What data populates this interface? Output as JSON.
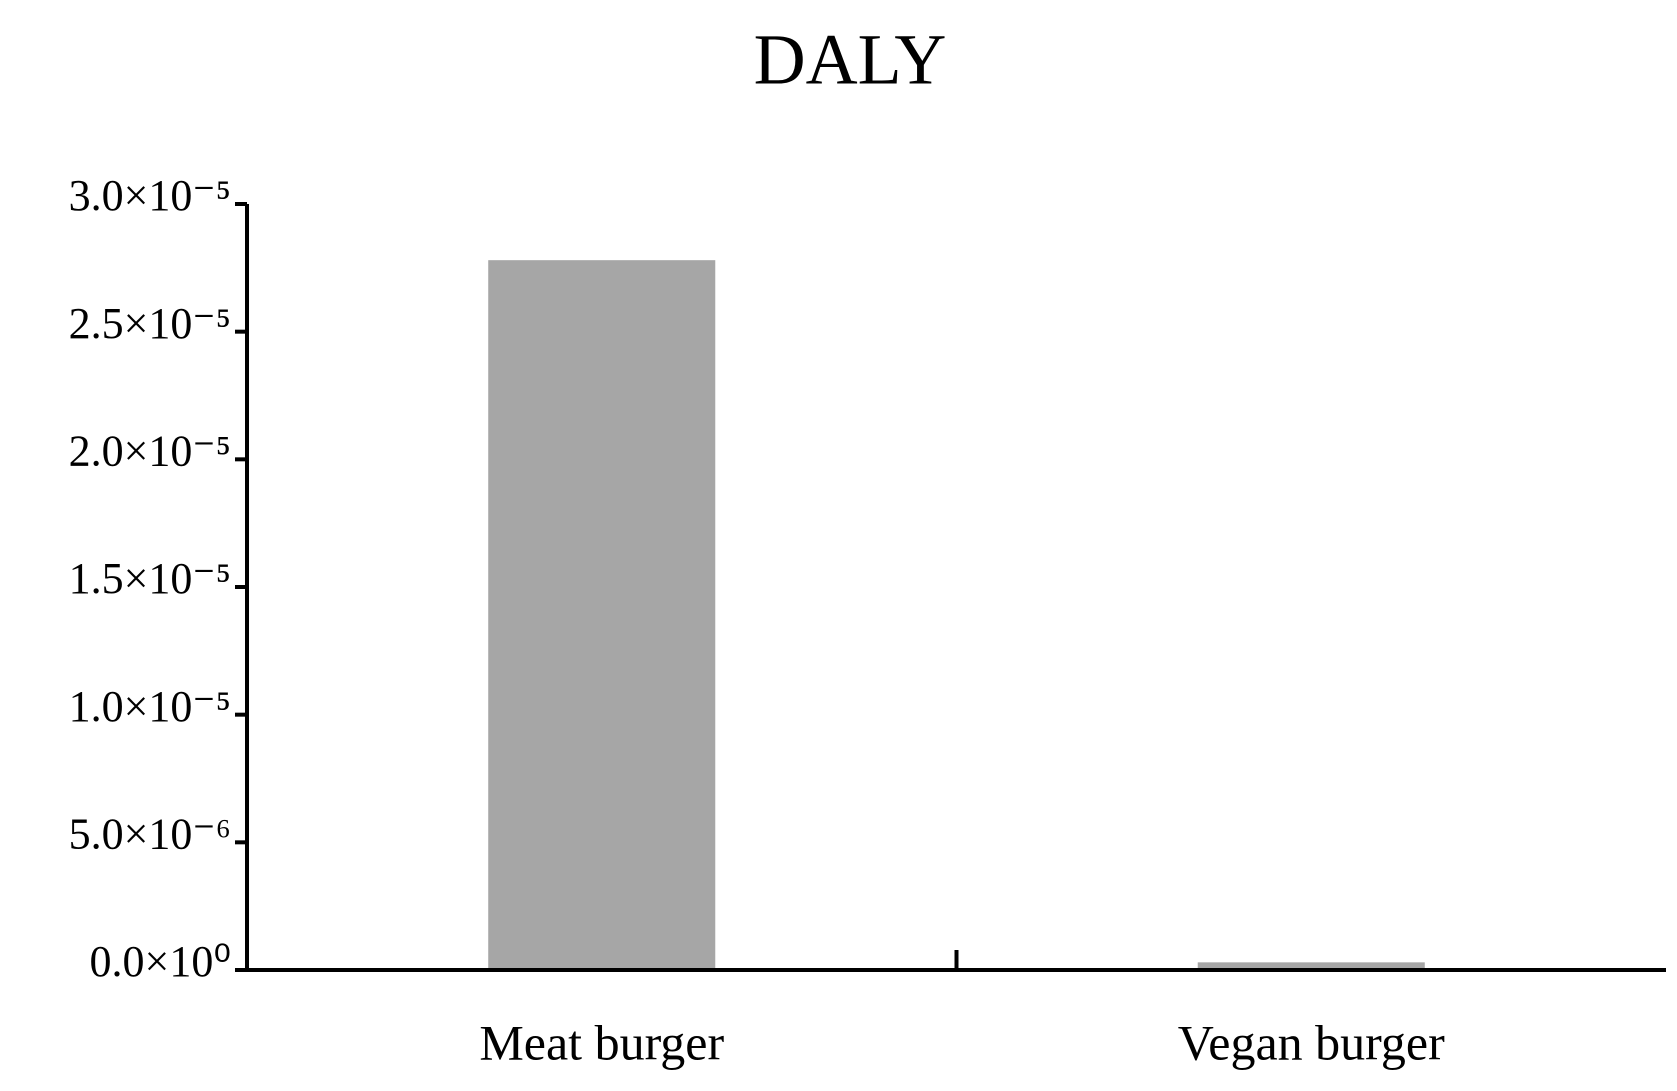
{
  "chart_data": {
    "type": "bar",
    "title": "DALY",
    "categories": [
      "Meat burger",
      "Vegan burger"
    ],
    "values": [
      2.78e-05,
      3e-07
    ],
    "color": "#a6a6a6",
    "ylim": [
      0,
      3e-05
    ],
    "yticks": [
      {
        "value": 0,
        "label": "0.0×10⁰"
      },
      {
        "value": 5e-06,
        "label": "5.0×10⁻⁶"
      },
      {
        "value": 1e-05,
        "label": "1.0×10⁻⁵"
      },
      {
        "value": 1.5e-05,
        "label": "1.5×10⁻⁵"
      },
      {
        "value": 2e-05,
        "label": "2.0×10⁻⁵"
      },
      {
        "value": 2.5e-05,
        "label": "2.5×10⁻⁵"
      },
      {
        "value": 3e-05,
        "label": "3.0×10⁻⁵"
      }
    ],
    "grid": false
  }
}
